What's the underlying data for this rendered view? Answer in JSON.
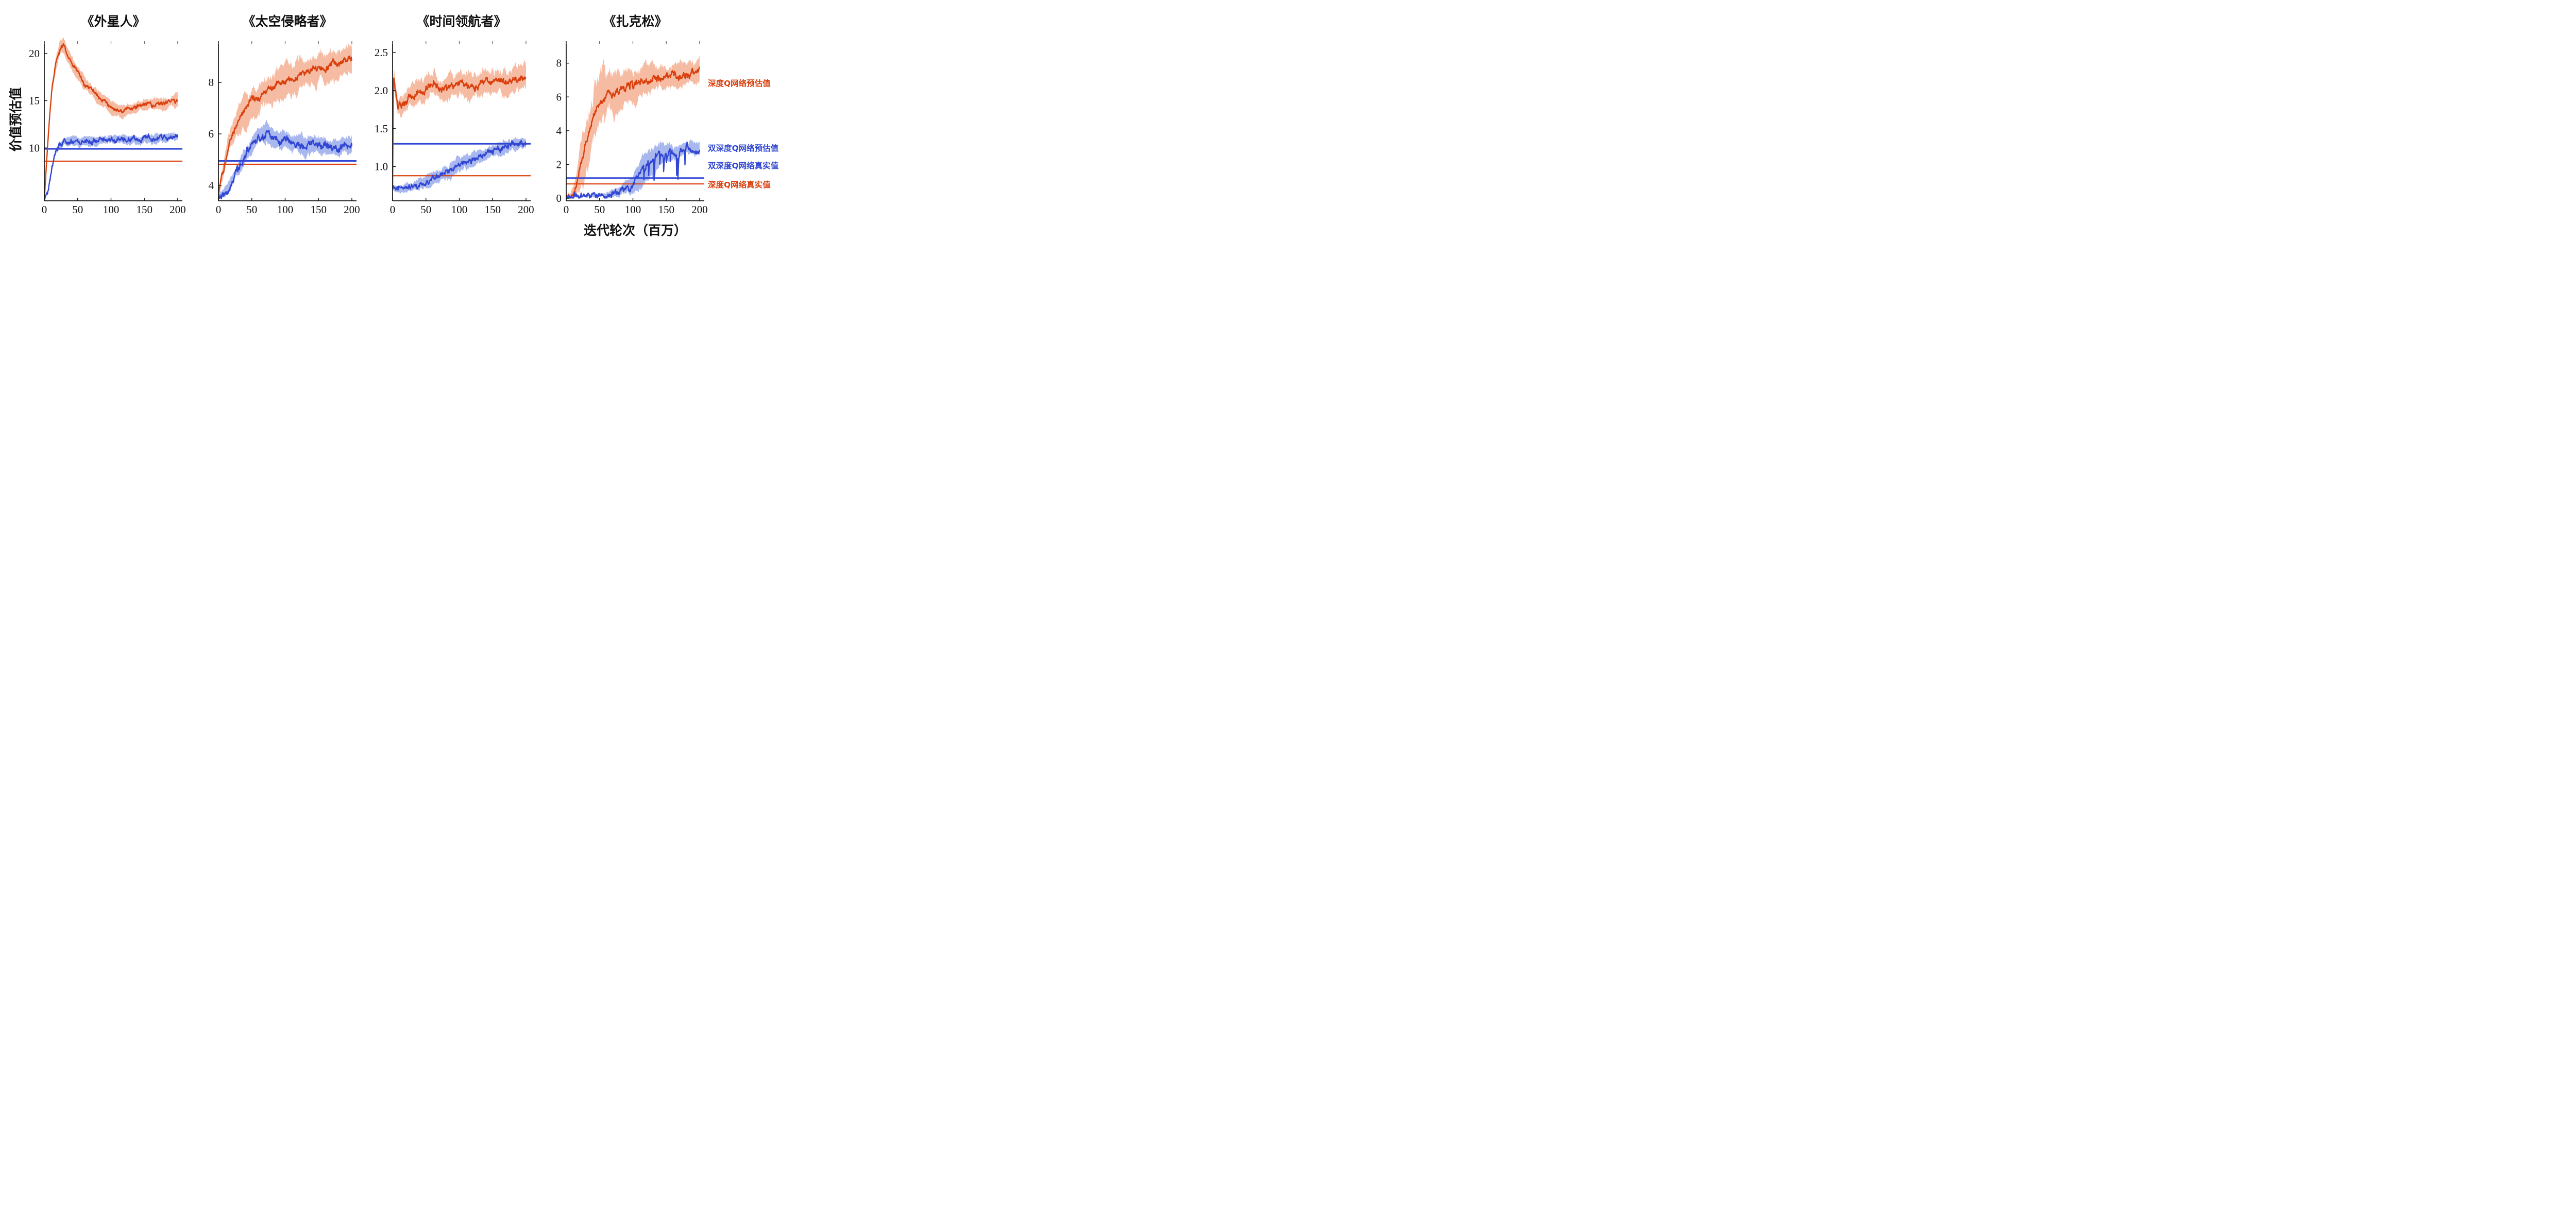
{
  "figure": {
    "ylabel": "价值预估值",
    "xlabel": "迭代轮次（百万）",
    "background": "#ffffff",
    "colors": {
      "dqn_line": "#d9400e",
      "dqn_band": "#f5b79e",
      "ddqn_line": "#3147d4",
      "ddqn_band": "#a3b3ec",
      "axis": "#111111"
    }
  },
  "legend": {
    "items": [
      {
        "label": "深度Q网络预估值",
        "color": "#d9400e"
      },
      {
        "label": "双深度Q网络预估值",
        "color": "#3147d4"
      },
      {
        "label": "双深度Q网络真实值",
        "color": "#3147d4"
      },
      {
        "label": "深度Q网络真实值",
        "color": "#d9400e"
      }
    ]
  },
  "chart_data": [
    {
      "type": "line",
      "title": "《外星人》",
      "xlim": [
        0,
        207
      ],
      "ylim": [
        4.4,
        21.3
      ],
      "xticks": [
        0,
        50,
        100,
        150,
        200
      ],
      "xtick_labels": [
        "0",
        "50",
        "100",
        "150",
        "200"
      ],
      "yticks": [
        10,
        15,
        20
      ],
      "ytick_labels": [
        "10",
        "15",
        "20"
      ],
      "series": [
        {
          "kind": "noisy-line",
          "name": "深度Q网络预估值",
          "color": "#d9400e",
          "band_color": "#f5b79e",
          "seed": 11,
          "x": [
            0,
            3,
            7,
            12,
            18,
            24,
            28,
            34,
            40,
            50,
            62,
            75,
            90,
            105,
            120,
            140,
            160,
            180,
            200
          ],
          "y": [
            4.5,
            8.0,
            12.5,
            16.5,
            19.3,
            20.6,
            20.9,
            20.0,
            19.2,
            18.0,
            16.7,
            15.8,
            14.9,
            14.2,
            14.0,
            14.3,
            14.6,
            14.6,
            15.1
          ],
          "noise": 0.28,
          "clamp": 4.45,
          "band_x": [
            0,
            10,
            25,
            50,
            100,
            150,
            200
          ],
          "band_w": [
            0.35,
            0.8,
            1.0,
            0.85,
            0.7,
            0.75,
            0.8
          ]
        },
        {
          "kind": "noisy-line",
          "name": "双深度Q网络预估值",
          "color": "#3147d4",
          "band_color": "#a3b3ec",
          "seed": 12,
          "x": [
            0,
            5,
            10,
            16,
            22,
            30,
            45,
            60,
            80,
            100,
            125,
            150,
            175,
            200
          ],
          "y": [
            4.5,
            5.4,
            7.2,
            9.3,
            10.2,
            10.6,
            10.7,
            10.65,
            10.7,
            10.8,
            10.8,
            10.9,
            11.0,
            11.1
          ],
          "noise": 0.36,
          "clamp": 4.45,
          "band_x": [
            0,
            15,
            30,
            200
          ],
          "band_w": [
            0.15,
            0.4,
            0.55,
            0.55
          ]
        },
        {
          "kind": "hline",
          "name": "双深度Q网络真实值",
          "color": "#3147d4",
          "y": 9.9,
          "width": 3
        },
        {
          "kind": "hline",
          "name": "深度Q网络真实值",
          "color": "#d9400e",
          "y": 8.6,
          "width": 2.2
        }
      ]
    },
    {
      "type": "line",
      "title": "《太空侵略者》",
      "xlim": [
        0,
        207
      ],
      "ylim": [
        3.4,
        9.6
      ],
      "xticks": [
        0,
        50,
        100,
        150,
        200
      ],
      "xtick_labels": [
        "0",
        "50",
        "100",
        "150",
        "200"
      ],
      "yticks": [
        4,
        6,
        8
      ],
      "ytick_labels": [
        "4",
        "6",
        "8"
      ],
      "series": [
        {
          "kind": "noisy-line",
          "name": "深度Q网络预估值",
          "color": "#d9400e",
          "band_color": "#f5b79e",
          "seed": 21,
          "x": [
            0,
            4,
            10,
            18,
            28,
            40,
            55,
            70,
            90,
            110,
            130,
            150,
            170,
            185,
            200
          ],
          "y": [
            3.6,
            4.2,
            5.0,
            5.8,
            6.4,
            6.9,
            7.3,
            7.6,
            7.9,
            8.1,
            8.35,
            8.5,
            8.7,
            8.75,
            9.0
          ],
          "noise": 0.17,
          "clamp": 3.45,
          "band_x": [
            0,
            15,
            40,
            100,
            200
          ],
          "band_w": [
            0.25,
            0.55,
            0.75,
            0.7,
            0.65
          ]
        },
        {
          "kind": "noisy-line",
          "name": "双深度Q网络预估值",
          "color": "#3147d4",
          "band_color": "#a3b3ec",
          "seed": 22,
          "x": [
            0,
            8,
            16,
            25,
            35,
            45,
            55,
            65,
            75,
            90,
            110,
            130,
            160,
            200
          ],
          "y": [
            3.55,
            3.7,
            4.0,
            4.4,
            4.9,
            5.35,
            5.75,
            5.95,
            6.0,
            5.85,
            5.7,
            5.55,
            5.5,
            5.6
          ],
          "noise": 0.19,
          "clamp": 3.45,
          "band_x": [
            0,
            30,
            60,
            100,
            200
          ],
          "band_w": [
            0.12,
            0.3,
            0.45,
            0.42,
            0.35
          ]
        },
        {
          "kind": "hline",
          "name": "双深度Q网络真实值",
          "color": "#3147d4",
          "y": 4.95,
          "width": 3
        },
        {
          "kind": "hline",
          "name": "深度Q网络真实值",
          "color": "#d9400e",
          "y": 4.82,
          "width": 2.2
        }
      ]
    },
    {
      "type": "line",
      "title": "《时间领航者》",
      "xlim": [
        0,
        207
      ],
      "ylim": [
        0.55,
        2.65
      ],
      "xticks": [
        0,
        50,
        100,
        150,
        200
      ],
      "xtick_labels": [
        "0",
        "50",
        "100",
        "150",
        "200"
      ],
      "yticks": [
        1.0,
        1.5,
        2.0,
        2.5
      ],
      "ytick_labels": [
        "1.0",
        "1.5",
        "2.0",
        "2.5"
      ],
      "series": [
        {
          "kind": "noisy-line",
          "name": "深度Q网络预估值",
          "color": "#d9400e",
          "band_color": "#f5b79e",
          "seed": 31,
          "x": [
            0,
            1.5,
            4,
            8,
            14,
            20,
            30,
            45,
            60,
            80,
            100,
            120,
            140,
            160,
            180,
            200
          ],
          "y": [
            0.7,
            2.25,
            2.02,
            1.78,
            1.82,
            1.88,
            1.95,
            2.0,
            2.08,
            2.02,
            2.12,
            2.07,
            2.13,
            2.08,
            2.14,
            2.2
          ],
          "noise": 0.06,
          "clamp": 0.58,
          "band_x": [
            0,
            10,
            50,
            200
          ],
          "band_w": [
            0.1,
            0.16,
            0.2,
            0.2
          ]
        },
        {
          "kind": "noisy-line",
          "name": "双深度Q网络预估值",
          "color": "#3147d4",
          "band_color": "#a3b3ec",
          "seed": 32,
          "x": [
            0,
            8,
            20,
            35,
            50,
            65,
            80,
            100,
            120,
            140,
            160,
            180,
            200
          ],
          "y": [
            0.73,
            0.7,
            0.73,
            0.77,
            0.8,
            0.85,
            0.93,
            1.02,
            1.1,
            1.18,
            1.24,
            1.28,
            1.31
          ],
          "noise": 0.05,
          "clamp": 0.58,
          "band_x": [
            0,
            40,
            90,
            140,
            200
          ],
          "band_w": [
            0.05,
            0.08,
            0.12,
            0.12,
            0.07
          ]
        },
        {
          "kind": "hline",
          "name": "双深度Q网络真实值",
          "color": "#3147d4",
          "y": 1.3,
          "width": 3
        },
        {
          "kind": "hline",
          "name": "深度Q网络真实值",
          "color": "#d9400e",
          "y": 0.88,
          "width": 2.2
        }
      ]
    },
    {
      "type": "line",
      "title": "《扎克松》",
      "xlim": [
        0,
        207
      ],
      "ylim": [
        -0.15,
        9.3
      ],
      "xticks": [
        0,
        50,
        100,
        150,
        200
      ],
      "xtick_labels": [
        "0",
        "50",
        "100",
        "150",
        "200"
      ],
      "yticks": [
        0,
        2,
        4,
        6,
        8
      ],
      "ytick_labels": [
        "0",
        "2",
        "4",
        "6",
        "8"
      ],
      "series": [
        {
          "kind": "noisy-line",
          "name": "深度Q网络预估值",
          "color": "#d9400e",
          "band_color": "#f5b79e",
          "seed": 41,
          "x": [
            0,
            8,
            15,
            22,
            30,
            38,
            46,
            55,
            65,
            80,
            95,
            110,
            125,
            140,
            155,
            170,
            185,
            200
          ],
          "y": [
            0.08,
            0.2,
            0.7,
            1.8,
            3.2,
            4.5,
            5.4,
            5.9,
            6.2,
            6.3,
            6.6,
            6.8,
            7.0,
            7.2,
            7.35,
            7.2,
            7.5,
            7.6
          ],
          "noise": 0.28,
          "clamp": 0.02,
          "band_x": [
            0,
            12,
            22,
            35,
            55,
            80,
            110,
            150,
            200
          ],
          "band_w": [
            0.08,
            0.5,
            1.5,
            2.1,
            2.0,
            1.4,
            0.95,
            0.8,
            0.8
          ]
        },
        {
          "kind": "noisy-line",
          "name": "双深度Q网络预估值",
          "color": "#3147d4",
          "band_color": "#a3b3ec",
          "seed": 42,
          "x": [
            0,
            30,
            60,
            80,
            95,
            105,
            115,
            125,
            135,
            145,
            155,
            165,
            180,
            200
          ],
          "y": [
            0.06,
            0.1,
            0.2,
            0.4,
            0.7,
            1.1,
            1.6,
            2.1,
            2.5,
            2.6,
            2.7,
            2.75,
            2.85,
            2.95
          ],
          "noise": 0.24,
          "clamp": 0.02,
          "spikes": {
            "x0": 115,
            "x1": 182,
            "prob": 0.055,
            "mag": 1.5
          },
          "band_x": [
            0,
            70,
            95,
            115,
            135,
            160,
            200
          ],
          "band_w": [
            0.06,
            0.2,
            0.5,
            0.9,
            1.0,
            0.6,
            0.4
          ]
        },
        {
          "kind": "hline",
          "name": "双深度Q网络真实值",
          "color": "#3147d4",
          "y": 1.2,
          "width": 3
        },
        {
          "kind": "hline",
          "name": "深度Q网络真实值",
          "color": "#d9400e",
          "y": 0.85,
          "width": 2.2
        }
      ]
    }
  ]
}
